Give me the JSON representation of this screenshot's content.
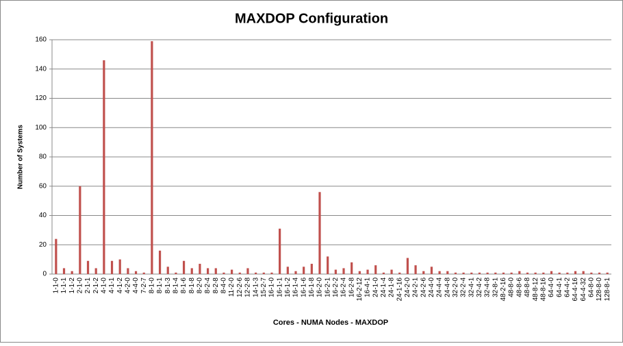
{
  "chart_data": {
    "type": "bar",
    "title": "MAXDOP Configuration",
    "x_label": "Cores - NUMA Nodes - MAXDOP",
    "y_label": "Number of Systems",
    "categories": [
      "1-1-0",
      "1-1-1",
      "1-1-2",
      "2-1-0",
      "2-1-1",
      "2-1-2",
      "4-1-0",
      "4-1-1",
      "4-1-2",
      "4-2-0",
      "4-4-0",
      "7-2-7",
      "8-1-0",
      "8-1-1",
      "8-1-3",
      "8-1-4",
      "8-1-6",
      "8-1-8",
      "8-2-0",
      "8-2-4",
      "8-2-8",
      "8-4-0",
      "11-2-0",
      "12-2-6",
      "12-2-8",
      "14-1-3",
      "15-2-7",
      "16-1-0",
      "16-1-1",
      "16-1-2",
      "16-1-4",
      "16-1-6",
      "16-1-8",
      "16-2-0",
      "16-2-1",
      "16-2-2",
      "16-2-4",
      "16-2-8",
      "16-2-12",
      "16-4-1",
      "24-1-0",
      "24-1-4",
      "24-1-8",
      "24-1-16",
      "24-2-0",
      "24-2-1",
      "24-2-6",
      "24-4-0",
      "24-4-4",
      "24-4-8",
      "32-2-0",
      "32-2-4",
      "32-4-1",
      "32-4-2",
      "32-4-8",
      "32-8-1",
      "48-2-16",
      "48-8-0",
      "48-8-6",
      "48-8-8",
      "48-8-12",
      "48-8-16",
      "64-4-0",
      "64-4-1",
      "64-4-2",
      "64-4-16",
      "64-4-32",
      "64-8-0",
      "128-8-0",
      "128-8-1"
    ],
    "values": [
      24,
      4,
      2,
      60,
      9,
      4,
      146,
      9,
      10,
      4,
      2,
      1,
      159,
      16,
      5,
      1,
      9,
      4,
      7,
      4,
      4,
      1,
      3,
      1,
      4,
      1,
      1,
      1,
      31,
      5,
      2,
      5,
      7,
      56,
      12,
      3,
      4,
      8,
      2,
      3,
      6,
      1,
      3,
      1,
      11,
      6,
      2,
      5,
      2,
      2,
      1,
      1,
      1,
      1,
      1,
      1,
      1,
      1,
      2,
      1,
      1,
      1,
      2,
      1,
      1,
      2,
      2,
      1,
      1,
      1
    ],
    "color": "#c0504d",
    "ylim": [
      0,
      160
    ],
    "yticks": [
      0,
      20,
      40,
      60,
      80,
      100,
      120,
      140,
      160
    ],
    "grid": true
  }
}
